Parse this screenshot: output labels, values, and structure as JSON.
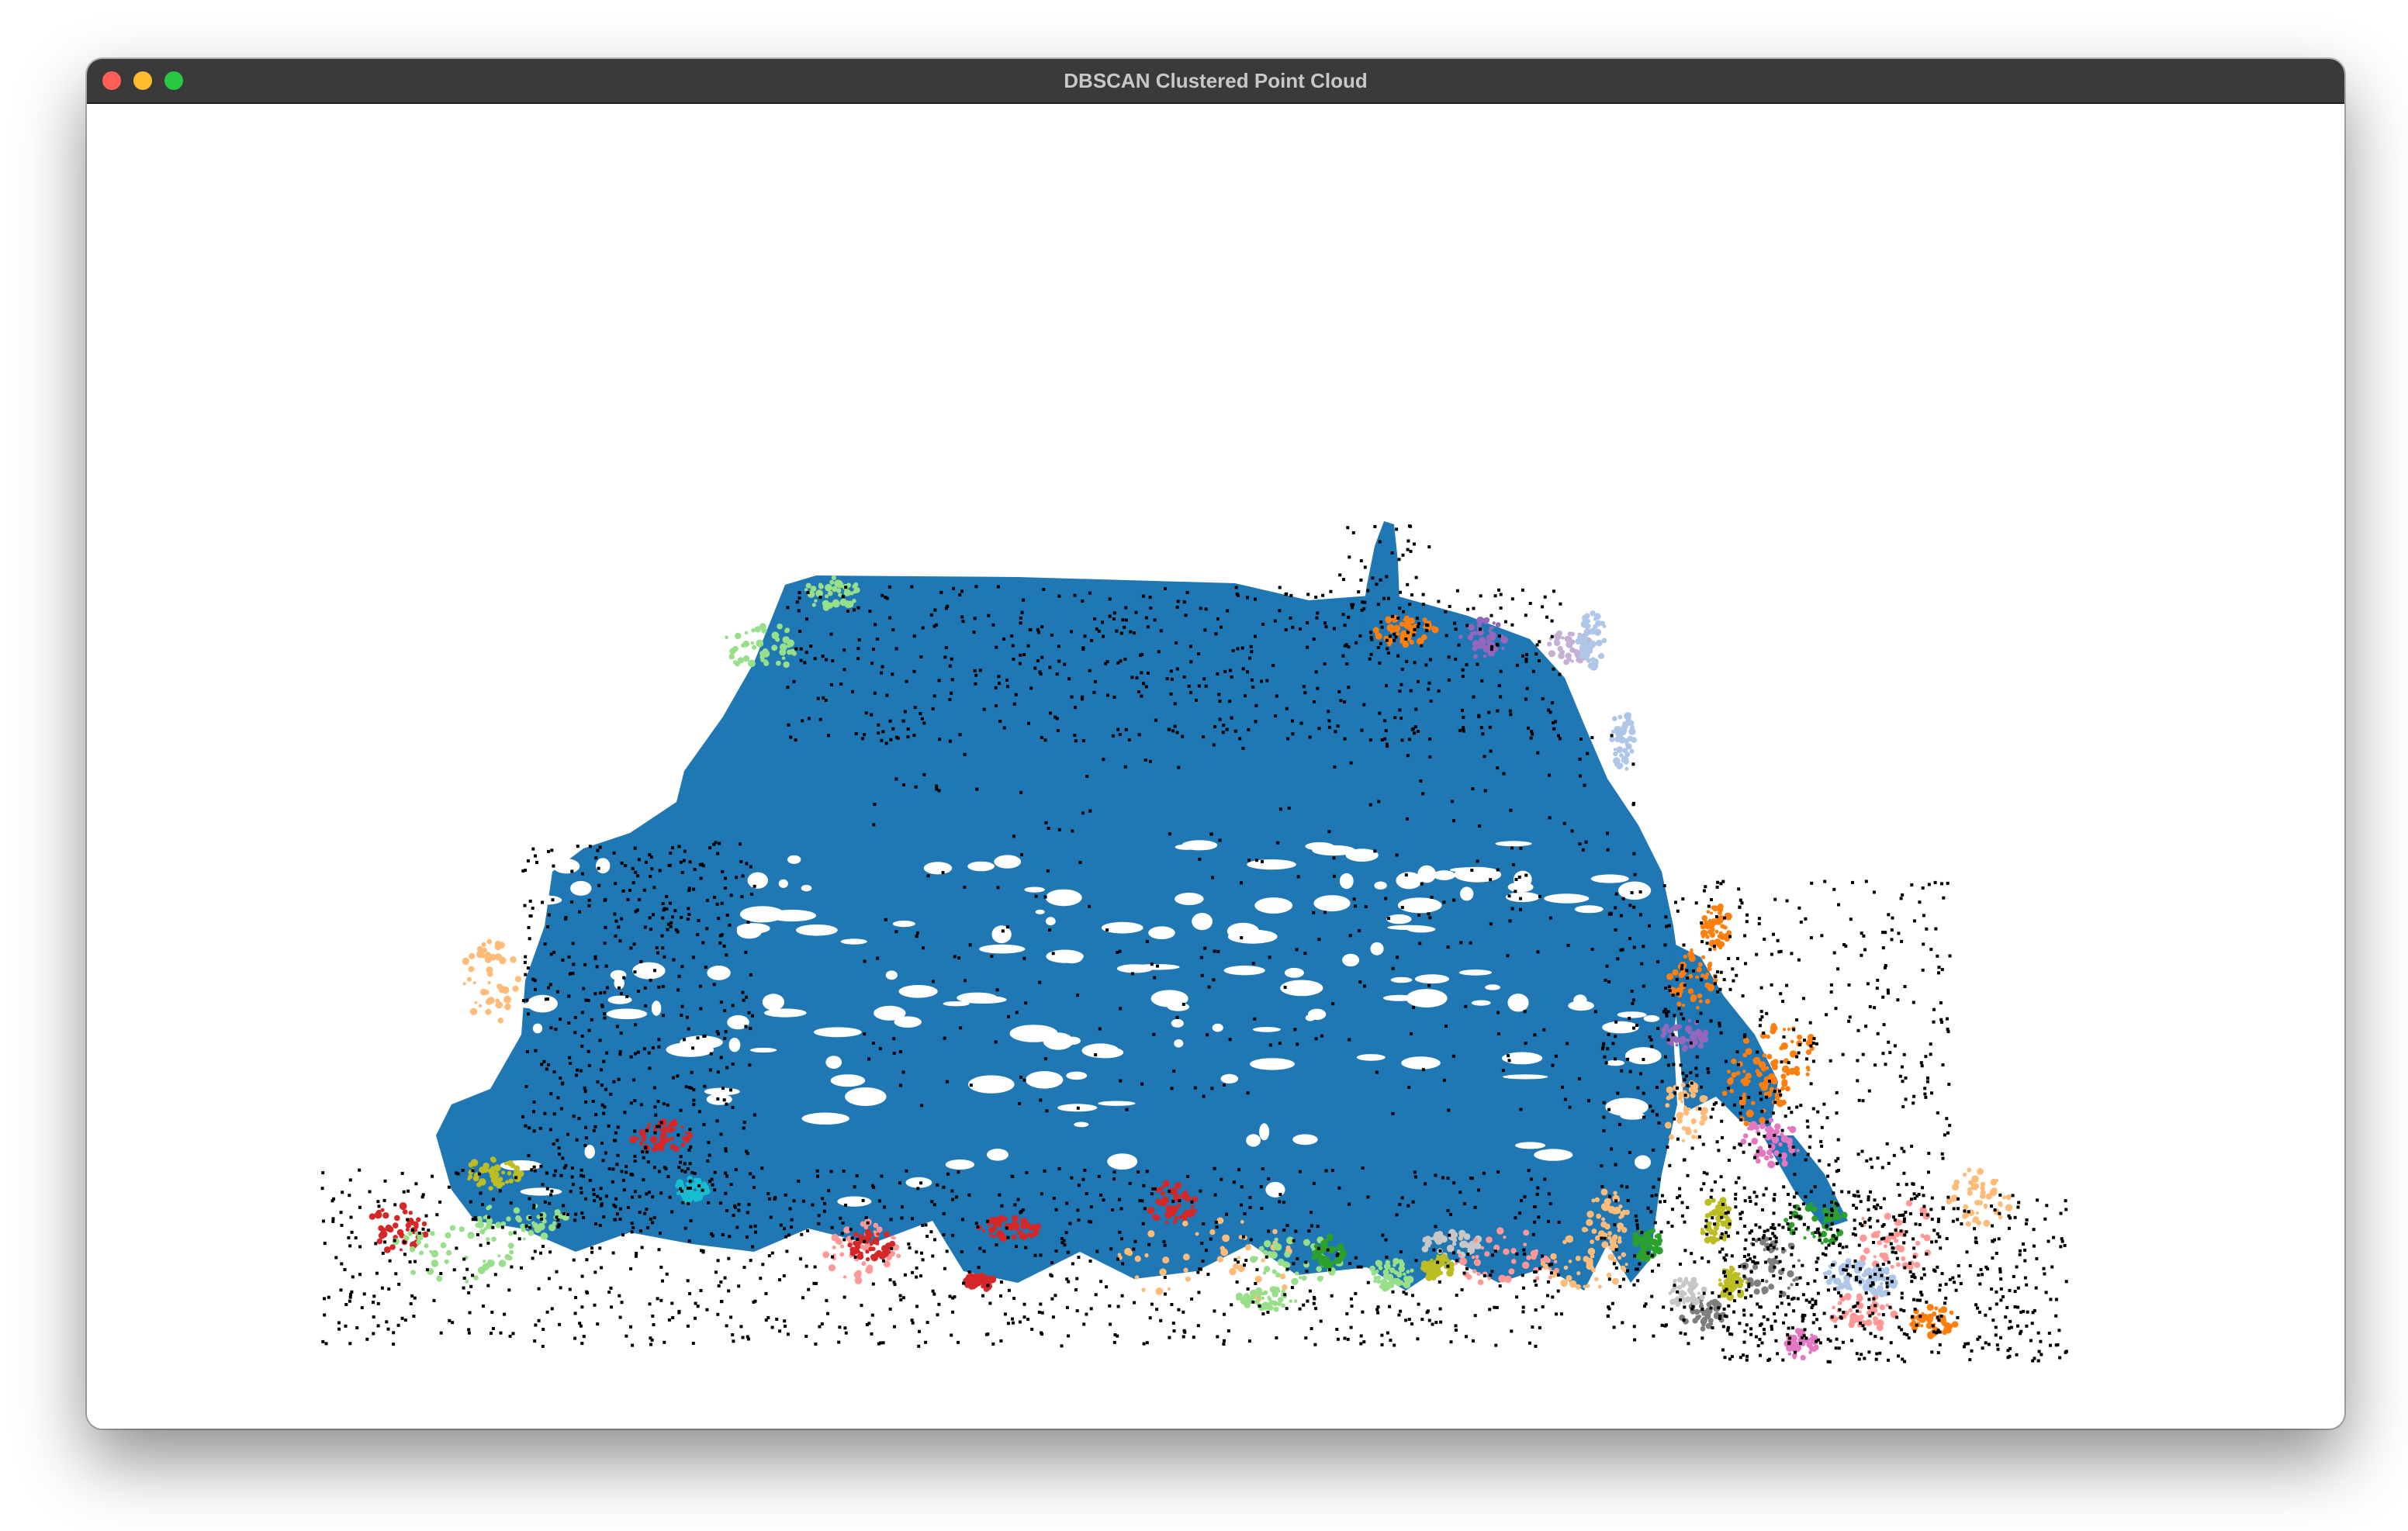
{
  "window": {
    "title": "DBSCAN Clustered Point Cloud"
  },
  "viewer": {
    "background": "#ffffff",
    "noise_color": "#000000",
    "cluster_colors": [
      "#1f77b4",
      "#ffbb78",
      "#ff7f0e",
      "#98df8a",
      "#2ca02c",
      "#d62728",
      "#ff9896",
      "#9467bd",
      "#c5b0d5",
      "#8c564b",
      "#e377c2",
      "#7f7f7f",
      "#c7c7c7",
      "#bcbd22",
      "#17becf",
      "#aec7e8"
    ]
  }
}
